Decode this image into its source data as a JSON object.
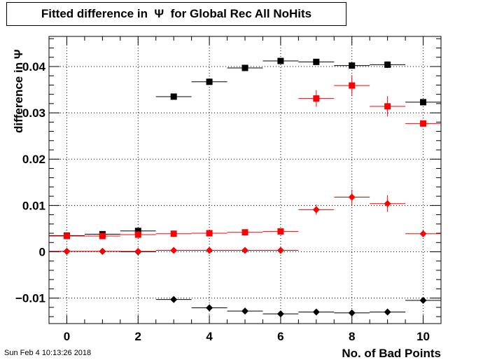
{
  "chart_data": {
    "type": "scatter",
    "title": "Fitted difference in  Ψ  for Global Rec All NoHits",
    "xlabel": "No. of Bad Points",
    "ylabel": "difference in  Ψ",
    "xlim": [
      -0.5,
      10.5
    ],
    "ylim": [
      -0.0155,
      0.0465
    ],
    "xticks": [
      "0",
      "2",
      "4",
      "6",
      "8",
      "10"
    ],
    "yticks": [
      "−0.01",
      "0",
      "0.01",
      "0.02",
      "0.03",
      "0.04"
    ],
    "grid": true,
    "series": [
      {
        "color": "#000000",
        "marker": "square",
        "points": [
          {
            "x": 0,
            "y": 0.0035,
            "xerr": 0.5,
            "yerr": 0.0
          },
          {
            "x": 1,
            "y": 0.0038,
            "xerr": 0.5,
            "yerr": 0.0
          },
          {
            "x": 2,
            "y": 0.0045,
            "xerr": 0.5,
            "yerr": 0.0
          },
          {
            "x": 3,
            "y": 0.0335,
            "xerr": 0.5,
            "yerr": 0.0
          },
          {
            "x": 4,
            "y": 0.0367,
            "xerr": 0.5,
            "yerr": 0.0
          },
          {
            "x": 5,
            "y": 0.0397,
            "xerr": 0.5,
            "yerr": 0.0
          },
          {
            "x": 6,
            "y": 0.0412,
            "xerr": 0.5,
            "yerr": 0.0
          },
          {
            "x": 7,
            "y": 0.041,
            "xerr": 0.5,
            "yerr": 0.0
          },
          {
            "x": 8,
            "y": 0.0402,
            "xerr": 0.5,
            "yerr": 0.0
          },
          {
            "x": 9,
            "y": 0.0404,
            "xerr": 0.5,
            "yerr": 0.0007
          },
          {
            "x": 10,
            "y": 0.0323,
            "xerr": 0.5,
            "yerr": 0.0
          }
        ]
      },
      {
        "color": "#ff0000",
        "marker": "square",
        "points": [
          {
            "x": 0,
            "y": 0.0034,
            "xerr": 0.5,
            "yerr": 0.0
          },
          {
            "x": 1,
            "y": 0.0034,
            "xerr": 0.5,
            "yerr": 0.0
          },
          {
            "x": 2,
            "y": 0.0037,
            "xerr": 0.5,
            "yerr": 0.0
          },
          {
            "x": 3,
            "y": 0.0039,
            "xerr": 0.5,
            "yerr": 0.0
          },
          {
            "x": 4,
            "y": 0.004,
            "xerr": 0.5,
            "yerr": 0.0
          },
          {
            "x": 5,
            "y": 0.0042,
            "xerr": 0.5,
            "yerr": 0.0
          },
          {
            "x": 6,
            "y": 0.0044,
            "xerr": 0.5,
            "yerr": 0.0
          },
          {
            "x": 7,
            "y": 0.0331,
            "xerr": 0.5,
            "yerr": 0.0018
          },
          {
            "x": 8,
            "y": 0.0359,
            "xerr": 0.5,
            "yerr": 0.0022
          },
          {
            "x": 9,
            "y": 0.0314,
            "xerr": 0.5,
            "yerr": 0.0022
          },
          {
            "x": 10,
            "y": 0.0277,
            "xerr": 0.5,
            "yerr": 0.0
          }
        ]
      },
      {
        "color": "#000000",
        "marker": "diamond",
        "points": [
          {
            "x": 0,
            "y": 0.0001,
            "xerr": 0.5,
            "yerr": 0.0
          },
          {
            "x": 1,
            "y": 0.0001,
            "xerr": 0.5,
            "yerr": 0.0
          },
          {
            "x": 2,
            "y": 0.0,
            "xerr": 0.5,
            "yerr": 0.0
          },
          {
            "x": 3,
            "y": -0.0103,
            "xerr": 0.5,
            "yerr": 0.0
          },
          {
            "x": 4,
            "y": -0.0121,
            "xerr": 0.5,
            "yerr": 0.0
          },
          {
            "x": 5,
            "y": -0.0128,
            "xerr": 0.5,
            "yerr": 0.0
          },
          {
            "x": 6,
            "y": -0.0134,
            "xerr": 0.5,
            "yerr": 0.0
          },
          {
            "x": 7,
            "y": -0.013,
            "xerr": 0.5,
            "yerr": 0.0
          },
          {
            "x": 8,
            "y": -0.0132,
            "xerr": 0.5,
            "yerr": 0.0
          },
          {
            "x": 9,
            "y": -0.013,
            "xerr": 0.5,
            "yerr": 0.0
          },
          {
            "x": 10,
            "y": -0.0105,
            "xerr": 0.5,
            "yerr": 0.0
          }
        ]
      },
      {
        "color": "#ff0000",
        "marker": "diamond",
        "points": [
          {
            "x": 0,
            "y": 0.0001,
            "xerr": 0.5,
            "yerr": 0.0
          },
          {
            "x": 1,
            "y": 0.0001,
            "xerr": 0.5,
            "yerr": 0.0
          },
          {
            "x": 2,
            "y": 0.0001,
            "xerr": 0.5,
            "yerr": 0.0
          },
          {
            "x": 3,
            "y": 0.0003,
            "xerr": 0.5,
            "yerr": 0.0
          },
          {
            "x": 4,
            "y": 0.0003,
            "xerr": 0.5,
            "yerr": 0.0
          },
          {
            "x": 5,
            "y": 0.0003,
            "xerr": 0.5,
            "yerr": 0.0
          },
          {
            "x": 6,
            "y": 0.0003,
            "xerr": 0.5,
            "yerr": 0.0
          },
          {
            "x": 7,
            "y": 0.0091,
            "xerr": 0.5,
            "yerr": 0.0011
          },
          {
            "x": 8,
            "y": 0.0118,
            "xerr": 0.5,
            "yerr": 0.0016
          },
          {
            "x": 9,
            "y": 0.0104,
            "xerr": 0.5,
            "yerr": 0.0018
          },
          {
            "x": 10,
            "y": 0.0039,
            "xerr": 0.5,
            "yerr": 0.0
          }
        ]
      }
    ]
  },
  "footer": {
    "timestamp": "Sun Feb  4 10:13:26 2018"
  }
}
